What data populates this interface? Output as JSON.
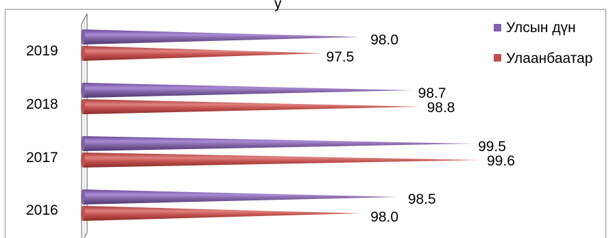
{
  "chart_data": {
    "type": "bar",
    "orientation": "horizontal",
    "bar_shape": "cone",
    "categories": [
      "2019",
      "2018",
      "2017",
      "2016"
    ],
    "series": [
      {
        "name": "Улсын дүн",
        "color": "#7F5FAF",
        "values": [
          98.0,
          98.7,
          99.5,
          98.5
        ]
      },
      {
        "name": "Улаанбаатар",
        "color": "#C0504D",
        "values": [
          97.5,
          98.8,
          99.6,
          98.0
        ]
      }
    ],
    "value_labels": {
      "series_0": [
        "98.0",
        "98.7",
        "99.5",
        "98.5"
      ],
      "series_1": [
        "97.5",
        "98.8",
        "99.6",
        "98.0"
      ]
    },
    "xlabel": "",
    "ylabel": "",
    "xlim": [
      94.3,
      100
    ],
    "grid": false,
    "legend_position": "top-right",
    "title": "",
    "partial_top_text": "y"
  }
}
